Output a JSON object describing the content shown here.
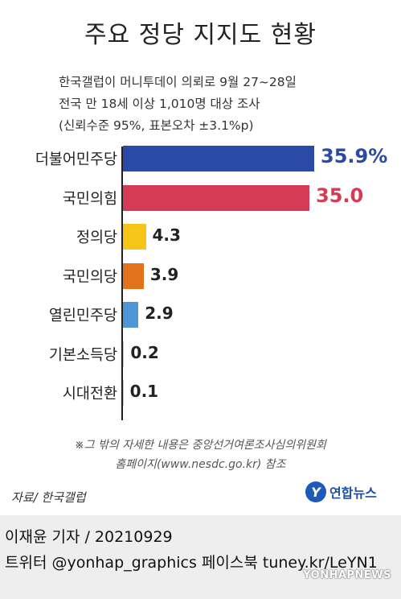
{
  "title": "주요 정당 지지도 현황",
  "subtitle_lines": [
    "한국갤럽이 머니투데이 의뢰로 9월 27~28일",
    "전국 만 18세 이상 1,010명 대상 조사",
    "(신뢰수준 95%, 표본오차 ±3.1%p)"
  ],
  "chart_data": {
    "type": "bar",
    "orientation": "horizontal",
    "categories": [
      "더불어민주당",
      "국민의힘",
      "정의당",
      "국민의당",
      "열린민주당",
      "기본소득당",
      "시대전환"
    ],
    "values": [
      35.9,
      35.0,
      4.3,
      3.9,
      2.9,
      0.2,
      0.1
    ],
    "value_labels": [
      "35.9%",
      "35.0",
      "4.3",
      "3.9",
      "2.9",
      "0.2",
      "0.1"
    ],
    "colors": [
      "#2b4aa8",
      "#d63b55",
      "#f7c518",
      "#e2721b",
      "#4d95d6",
      "#cccccc",
      "#cccccc"
    ],
    "label_colors": [
      "#2b4aa8",
      "#d63b55",
      "#222222",
      "#222222",
      "#222222",
      "#222222",
      "#222222"
    ],
    "title": "주요 정당 지지도 현황",
    "xlabel": "",
    "ylabel": "",
    "xlim": [
      0,
      35.9
    ]
  },
  "note_lines": [
    "※그 밖의 자세한 내용은 중앙선거여론조사심의위원회",
    "홈페이지(www.nesdc.go.kr) 참조"
  ],
  "source": "자료/ 한국갤럽",
  "logo_text": "연합뉴스",
  "footer": {
    "reporter": "이재윤 기자 / 20210929",
    "social": "트위터 @yonhap_graphics  페이스북 tuney.kr/LeYN1"
  },
  "watermark": "YONHAPNEWS"
}
